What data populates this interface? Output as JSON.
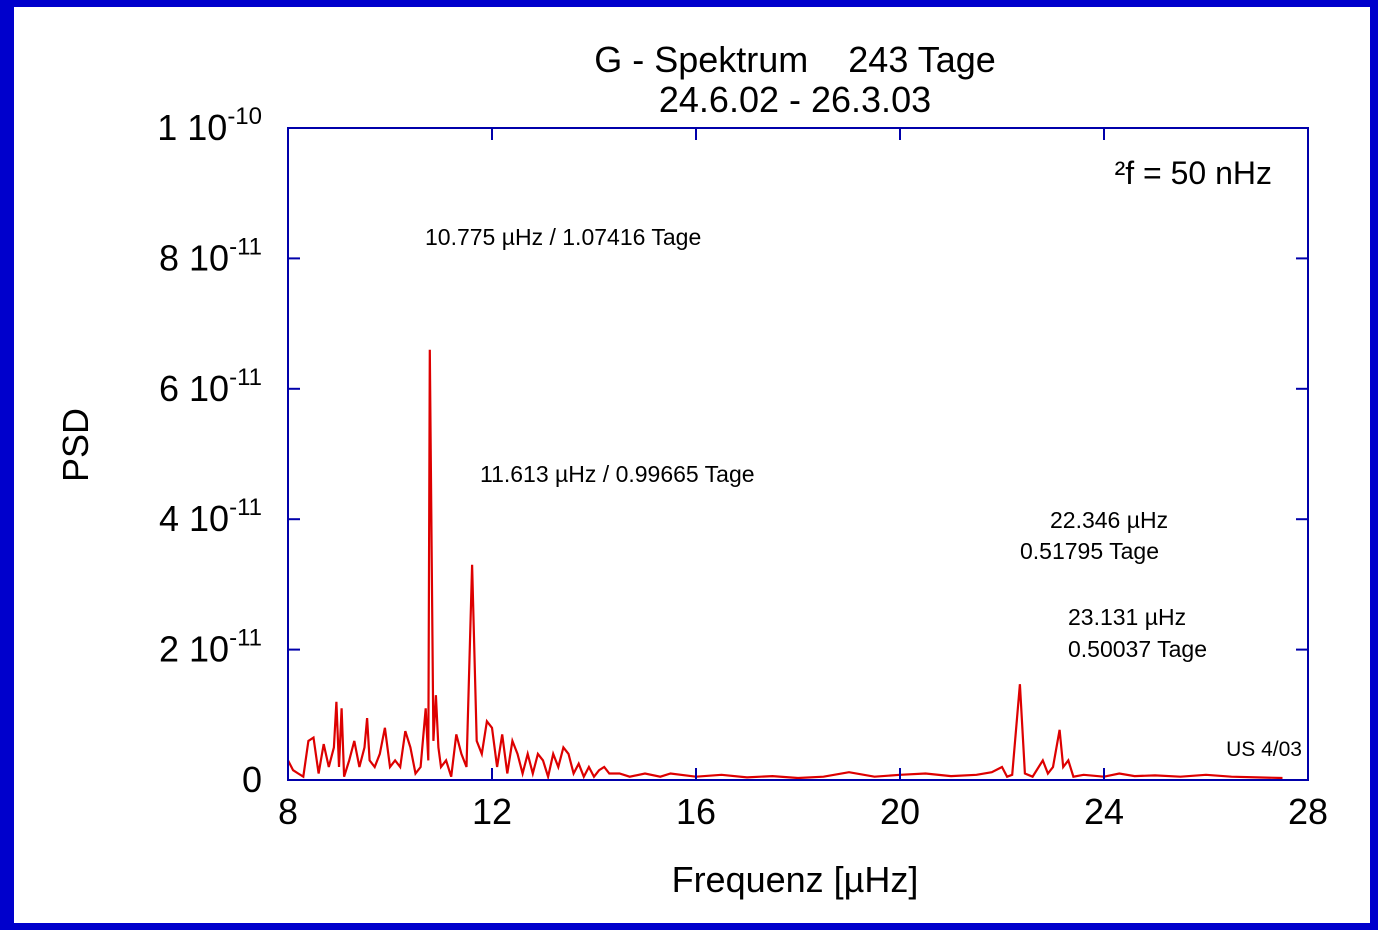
{
  "chart_data": {
    "type": "line",
    "title": "G - Spektrum    243 Tage",
    "subtitle": "24.6.02 - 26.3.03",
    "xlabel": "Frequenz [µHz]",
    "ylabel": "PSD",
    "annotations": [
      "²f = 50 nHz",
      "10.775 µHz / 1.07416 Tage",
      "11.613 µHz / 0.99665 Tage",
      "22.346 µHz",
      "0.51795 Tage",
      "23.131 µHz",
      "0.50037 Tage",
      "US 4/03"
    ],
    "xlim": [
      8,
      28
    ],
    "xticks": [
      8,
      12,
      16,
      20,
      24,
      28
    ],
    "ylim": [
      0,
      1e-10
    ],
    "yticks": [
      0,
      {
        "value": 2e-11,
        "label": "2 10",
        "exponent": "-11"
      },
      {
        "value": 4e-11,
        "label": "4 10",
        "exponent": "-11"
      },
      {
        "value": 6e-11,
        "label": "6 10",
        "exponent": "-11"
      },
      {
        "value": 8e-11,
        "label": "8 10",
        "exponent": "-11"
      },
      {
        "value": 1e-10,
        "label": "1 10",
        "exponent": "-10"
      }
    ],
    "series": [
      {
        "color": "#dd0000",
        "x": [
          8.0,
          8.1,
          8.2,
          8.3,
          8.4,
          8.5,
          8.6,
          8.7,
          8.8,
          8.9,
          8.95,
          9.0,
          9.05,
          9.1,
          9.2,
          9.3,
          9.4,
          9.5,
          9.55,
          9.6,
          9.7,
          9.8,
          9.9,
          10.0,
          10.1,
          10.2,
          10.3,
          10.4,
          10.5,
          10.6,
          10.7,
          10.75,
          10.78,
          10.85,
          10.9,
          10.95,
          11.0,
          11.1,
          11.2,
          11.3,
          11.4,
          11.5,
          11.61,
          11.7,
          11.8,
          11.9,
          12.0,
          12.1,
          12.2,
          12.3,
          12.4,
          12.5,
          12.6,
          12.7,
          12.8,
          12.9,
          13.0,
          13.1,
          13.2,
          13.3,
          13.4,
          13.5,
          13.6,
          13.7,
          13.8,
          13.9,
          14.0,
          14.1,
          14.2,
          14.3,
          14.5,
          14.7,
          15.0,
          15.3,
          15.5,
          16.0,
          16.5,
          17.0,
          17.5,
          18.0,
          18.5,
          19.0,
          19.5,
          20.0,
          20.5,
          21.0,
          21.5,
          21.8,
          22.0,
          22.1,
          22.2,
          22.35,
          22.45,
          22.6,
          22.8,
          22.9,
          23.0,
          23.13,
          23.2,
          23.3,
          23.4,
          23.6,
          24.0,
          24.3,
          24.6,
          25.0,
          25.5,
          26.0,
          26.5,
          27.0,
          27.5
        ],
        "values": [
          3e-12,
          1.5e-12,
          1e-12,
          5e-13,
          6e-12,
          6.5e-12,
          1e-12,
          5.5e-12,
          2e-12,
          5e-12,
          1.2e-11,
          2e-12,
          1.1e-11,
          5e-13,
          3e-12,
          6e-12,
          2e-12,
          5e-12,
          9.5e-12,
          3e-12,
          2e-12,
          4e-12,
          8e-12,
          2e-12,
          3e-12,
          2e-12,
          7.5e-12,
          5e-12,
          1e-12,
          2e-12,
          1.1e-11,
          3e-12,
          6.6e-11,
          6e-12,
          1.3e-11,
          5e-12,
          2e-12,
          3e-12,
          5e-13,
          7e-12,
          4e-12,
          2e-12,
          3.3e-11,
          6e-12,
          4e-12,
          9e-12,
          8e-12,
          2e-12,
          7e-12,
          1e-12,
          6e-12,
          4e-12,
          1e-12,
          4e-12,
          1e-12,
          4e-12,
          3e-12,
          5e-13,
          4e-12,
          2e-12,
          5e-12,
          4e-12,
          1e-12,
          2.5e-12,
          5e-13,
          2e-12,
          5e-13,
          1.5e-12,
          2e-12,
          1e-12,
          1e-12,
          5e-13,
          1e-12,
          5e-13,
          1e-12,
          5e-13,
          8e-13,
          4e-13,
          6e-13,
          3e-13,
          5e-13,
          1.2e-12,
          5e-13,
          8e-13,
          1e-12,
          6e-13,
          8e-13,
          1.2e-12,
          2e-12,
          5e-13,
          8e-13,
          1.47e-11,
          1e-12,
          5e-13,
          3e-12,
          1e-12,
          2e-12,
          7.7e-12,
          2e-12,
          3e-12,
          5e-13,
          8e-13,
          5e-13,
          1e-12,
          6e-13,
          7e-13,
          5e-13,
          8e-13,
          5e-13,
          4e-13,
          3e-13
        ]
      }
    ]
  }
}
